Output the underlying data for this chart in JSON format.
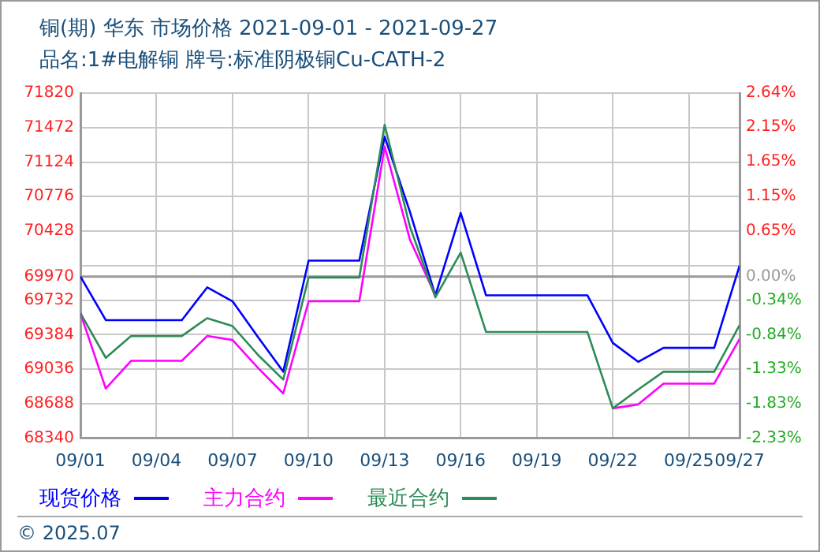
{
  "chart_data": {
    "type": "line",
    "title": "铜(期) 华东 市场价格 2021-09-01 - 2021-09-27",
    "subtitle": "品名:1#电解铜 牌号:标准阴极铜Cu-CATH-2",
    "x": [
      "2021-09-01",
      "2021-09-02",
      "2021-09-03",
      "2021-09-04",
      "2021-09-05",
      "2021-09-06",
      "2021-09-07",
      "2021-09-08",
      "2021-09-09",
      "2021-09-10",
      "2021-09-11",
      "2021-09-12",
      "2021-09-13",
      "2021-09-14",
      "2021-09-15",
      "2021-09-16",
      "2021-09-17",
      "2021-09-18",
      "2021-09-19",
      "2021-09-20",
      "2021-09-21",
      "2021-09-22",
      "2021-09-23",
      "2021-09-24",
      "2021-09-25",
      "2021-09-26",
      "2021-09-27"
    ],
    "series": [
      {
        "name": "现货价格",
        "color": "#0000ff",
        "values": [
          69970,
          69530,
          69530,
          69530,
          69530,
          69860,
          69720,
          69360,
          69010,
          70130,
          70130,
          70130,
          71380,
          70620,
          69780,
          70610,
          69780,
          69780,
          69780,
          69780,
          69780,
          69300,
          69110,
          69250,
          69250,
          69250,
          70080
        ]
      },
      {
        "name": "主力合约",
        "color": "#ff00ff",
        "values": [
          69600,
          68840,
          69120,
          69120,
          69120,
          69370,
          69330,
          69050,
          68790,
          69720,
          69720,
          69720,
          71280,
          70340,
          69780,
          null,
          null,
          null,
          null,
          null,
          null,
          68640,
          68680,
          68890,
          68890,
          68890,
          69340
        ]
      },
      {
        "name": "最近合约",
        "color": "#2e8b57",
        "values": [
          69600,
          69150,
          69370,
          69370,
          69370,
          69550,
          69470,
          69180,
          68930,
          69960,
          69960,
          69960,
          71500,
          70470,
          69760,
          70210,
          69410,
          69410,
          69410,
          69410,
          69410,
          68640,
          68830,
          69010,
          69010,
          69010,
          69480
        ]
      }
    ],
    "xlim": [
      "2021-09-01",
      "2021-09-27"
    ],
    "xticks": [
      {
        "value": "2021-09-01",
        "label": "09/01"
      },
      {
        "value": "2021-09-04",
        "label": "09/04"
      },
      {
        "value": "2021-09-07",
        "label": "09/07"
      },
      {
        "value": "2021-09-10",
        "label": "09/10"
      },
      {
        "value": "2021-09-13",
        "label": "09/13"
      },
      {
        "value": "2021-09-16",
        "label": "09/16"
      },
      {
        "value": "2021-09-19",
        "label": "09/19"
      },
      {
        "value": "2021-09-22",
        "label": "09/22"
      },
      {
        "value": "2021-09-25",
        "label": "09/25"
      },
      {
        "value": "2021-09-27",
        "label": "09/27"
      }
    ],
    "ylim": [
      68340,
      71820
    ],
    "yticks": [
      68340,
      68688,
      69036,
      69384,
      69732,
      69970,
      {
        "value": 70080,
        "label": null
      },
      70428,
      70776,
      71124,
      71472,
      71820
    ],
    "y2lim": [
      -2.33,
      2.64
    ],
    "y2ticks": [
      {
        "value": -2.33,
        "label": "-2.33%"
      },
      {
        "value": -1.83,
        "label": "-1.83%"
      },
      {
        "value": -1.33,
        "label": "-1.33%"
      },
      {
        "value": -0.84,
        "label": "-0.84%"
      },
      {
        "value": -0.34,
        "label": "-0.34%"
      },
      {
        "value": 0,
        "label": "0.00%"
      },
      {
        "value": 0.65,
        "label": "0.65%"
      },
      {
        "value": 1.15,
        "label": "1.15%"
      },
      {
        "value": 1.65,
        "label": "1.65%"
      },
      {
        "value": 2.15,
        "label": "2.15%"
      },
      {
        "value": 2.64,
        "label": "2.64%"
      }
    ],
    "ref_lines": [
      {
        "axis": "y",
        "value": 69970,
        "color": "#999999",
        "line_style": "solid"
      }
    ],
    "grid": true,
    "legend": "bottom",
    "marker": "none",
    "line_style": "solid",
    "annotations": [
      "© 2025.07"
    ]
  }
}
